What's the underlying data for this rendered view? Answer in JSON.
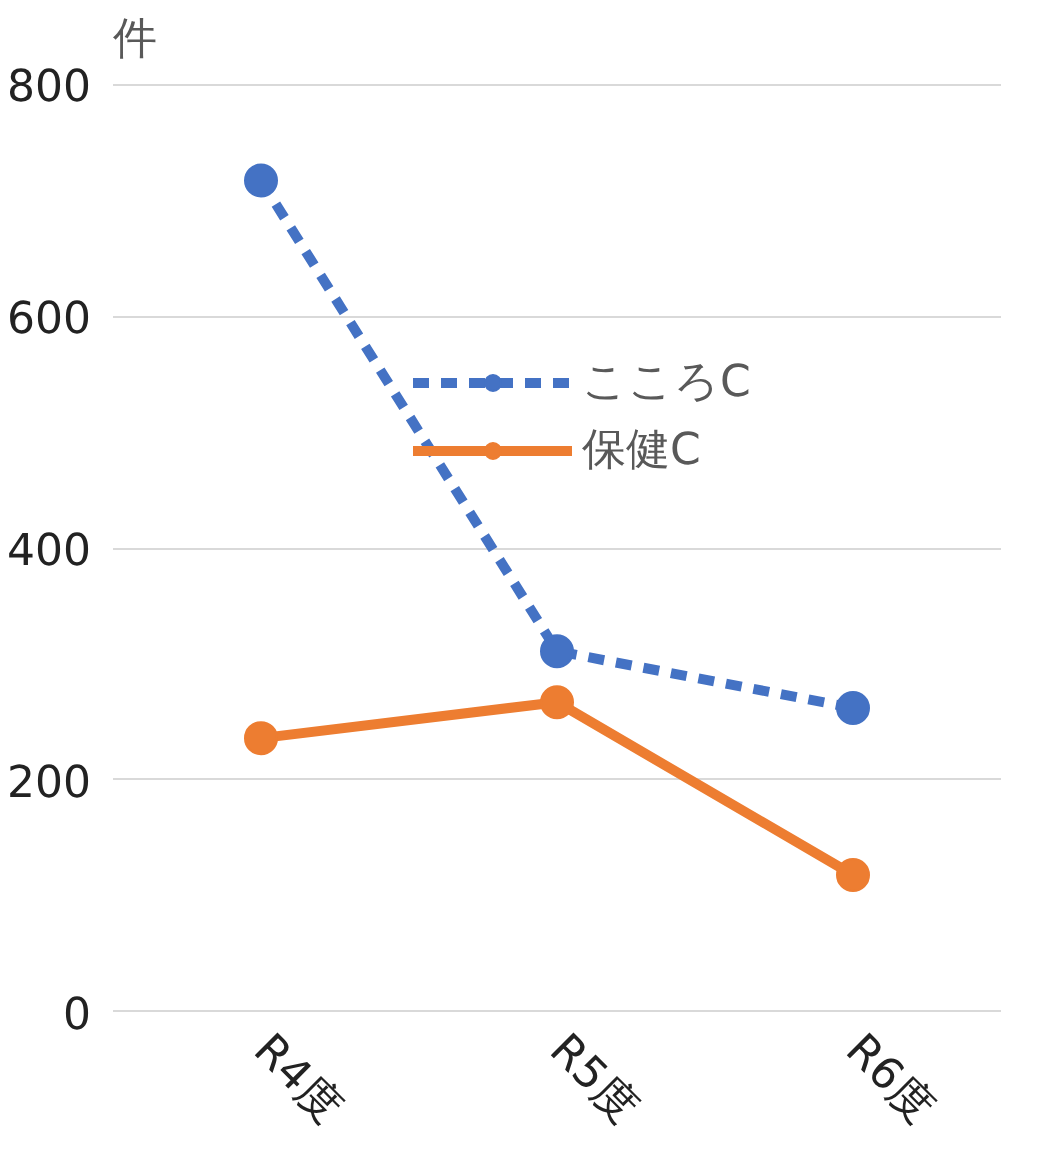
{
  "chart_data": {
    "type": "line",
    "ylabel": "件",
    "categories": [
      "R4度",
      "R5度",
      "R6度"
    ],
    "series": [
      {
        "name": "こころC",
        "color": "#4472c4",
        "values": [
          717,
          311,
          262
        ],
        "line_style": "dashed"
      },
      {
        "name": "保健C",
        "color": "#ed7d31",
        "values": [
          236,
          267,
          118
        ],
        "line_style": "solid"
      }
    ],
    "ylim": [
      0,
      800
    ],
    "yticks": [
      0,
      200,
      400,
      600,
      800
    ],
    "grid": "y",
    "legend": "top right",
    "marker": "circle"
  }
}
